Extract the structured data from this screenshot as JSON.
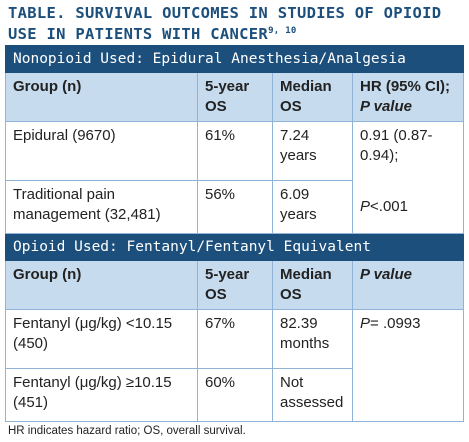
{
  "title": {
    "text": "TABLE. SURVIVAL OUTCOMES IN STUDIES OF OPIOID USE IN PATIENTS WITH CANCER",
    "superscript": "9, 10"
  },
  "sections": [
    {
      "heading": "Nonopioid Used: Epidural Anesthesia/Analgesia",
      "columns": [
        "Group (n)",
        "5-year OS",
        "Median OS",
        {
          "text": "HR (95% CI);",
          "italic": "P value"
        }
      ],
      "rows": [
        [
          "Epidural (9670)",
          "61%",
          "7.24 years",
          "0.91 (0.87-0.94);"
        ],
        [
          "Traditional pain management (32,481)",
          "56%",
          "6.09 years",
          {
            "italic": "P",
            "text": "<.001"
          }
        ]
      ]
    },
    {
      "heading": "Opioid Used: Fentanyl/Fentanyl Equivalent",
      "columns": [
        "Group (n)",
        "5-year OS",
        "Median OS",
        {
          "italic": "P value"
        }
      ],
      "rows": [
        [
          "Fentanyl (μg/kg) <10.15 (450)",
          "67%",
          "82.39 months",
          {
            "italic": "P",
            "text": "= .0993"
          }
        ],
        [
          "Fentanyl (μg/kg) ≥10.15 (451)",
          "60%",
          "Not assessed"
        ]
      ]
    }
  ],
  "footnote": "HR indicates hazard ratio; OS, overall survival."
}
